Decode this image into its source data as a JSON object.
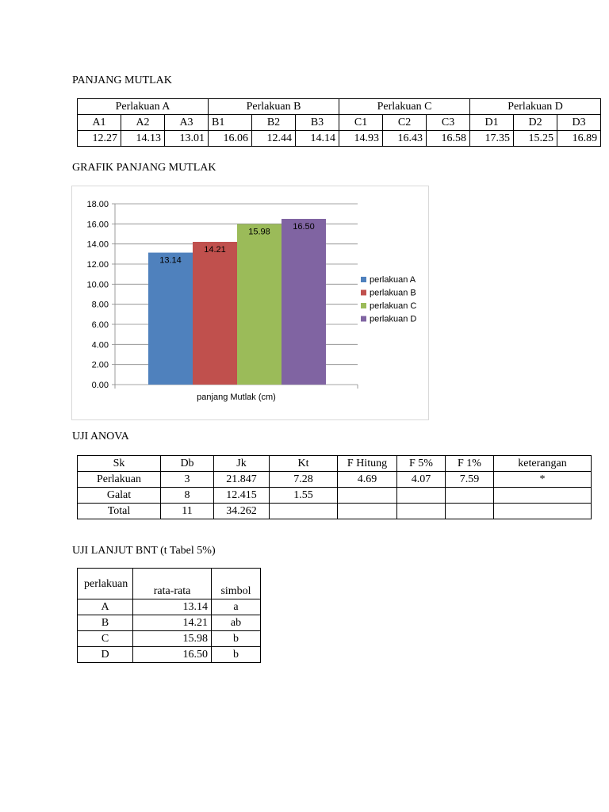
{
  "sections": {
    "panjang_title": "PANJANG MUTLAK",
    "grafik_title": "GRAFIK PANJANG MUTLAK",
    "anova_title": "UJI ANOVA",
    "bnt_title": "UJI LANJUT BNT (t Tabel 5%)"
  },
  "panjang": {
    "groups": [
      "Perlakuan A",
      "Perlakuan B",
      "Perlakuan C",
      "Perlakuan D"
    ],
    "codes": [
      "A1",
      "A2",
      "A3",
      "B1",
      "B2",
      "B3",
      "C1",
      "C2",
      "C3",
      "D1",
      "D2",
      "D3"
    ],
    "values": [
      "12.27",
      "14.13",
      "13.01",
      "16.06",
      "12.44",
      "14.14",
      "14.93",
      "16.43",
      "16.58",
      "17.35",
      "15.25",
      "16.89"
    ]
  },
  "chart_data": {
    "type": "bar",
    "title": "",
    "categories": [
      "panjang Mutlak (cm)"
    ],
    "xlabel": "panjang Mutlak (cm)",
    "ylabel": "",
    "ylim": [
      0,
      18
    ],
    "yticks": [
      "0.00",
      "2.00",
      "4.00",
      "6.00",
      "8.00",
      "10.00",
      "12.00",
      "14.00",
      "16.00",
      "18.00"
    ],
    "grid": true,
    "legend": "right",
    "series": [
      {
        "name": "perlakuan A",
        "values": [
          13.14
        ],
        "label": "13.14",
        "color": "#4f81bd"
      },
      {
        "name": "perlakuan B",
        "values": [
          14.21
        ],
        "label": "14.21",
        "color": "#c0504d"
      },
      {
        "name": "perlakuan C",
        "values": [
          15.98
        ],
        "label": "15.98",
        "color": "#9bbb59"
      },
      {
        "name": "perlakuan D",
        "values": [
          16.5
        ],
        "label": "16.50",
        "color": "#8064a2"
      }
    ]
  },
  "anova": {
    "headers": [
      "Sk",
      "Db",
      "Jk",
      "Kt",
      "F Hitung",
      "F 5%",
      "F 1%",
      "keterangan"
    ],
    "rows": [
      [
        "Perlakuan",
        "3",
        "21.847",
        "7.28",
        "4.69",
        "4.07",
        "7.59",
        "*"
      ],
      [
        "Galat",
        "8",
        "12.415",
        "1.55",
        "",
        "",
        "",
        ""
      ],
      [
        "Total",
        "11",
        "34.262",
        "",
        "",
        "",
        "",
        ""
      ]
    ]
  },
  "bnt": {
    "headers": [
      "perlakuan",
      "rata-rata",
      "simbol"
    ],
    "rows": [
      [
        "A",
        "13.14",
        "a"
      ],
      [
        "B",
        "14.21",
        "ab"
      ],
      [
        "C",
        "15.98",
        "b"
      ],
      [
        "D",
        "16.50",
        "b"
      ]
    ]
  }
}
